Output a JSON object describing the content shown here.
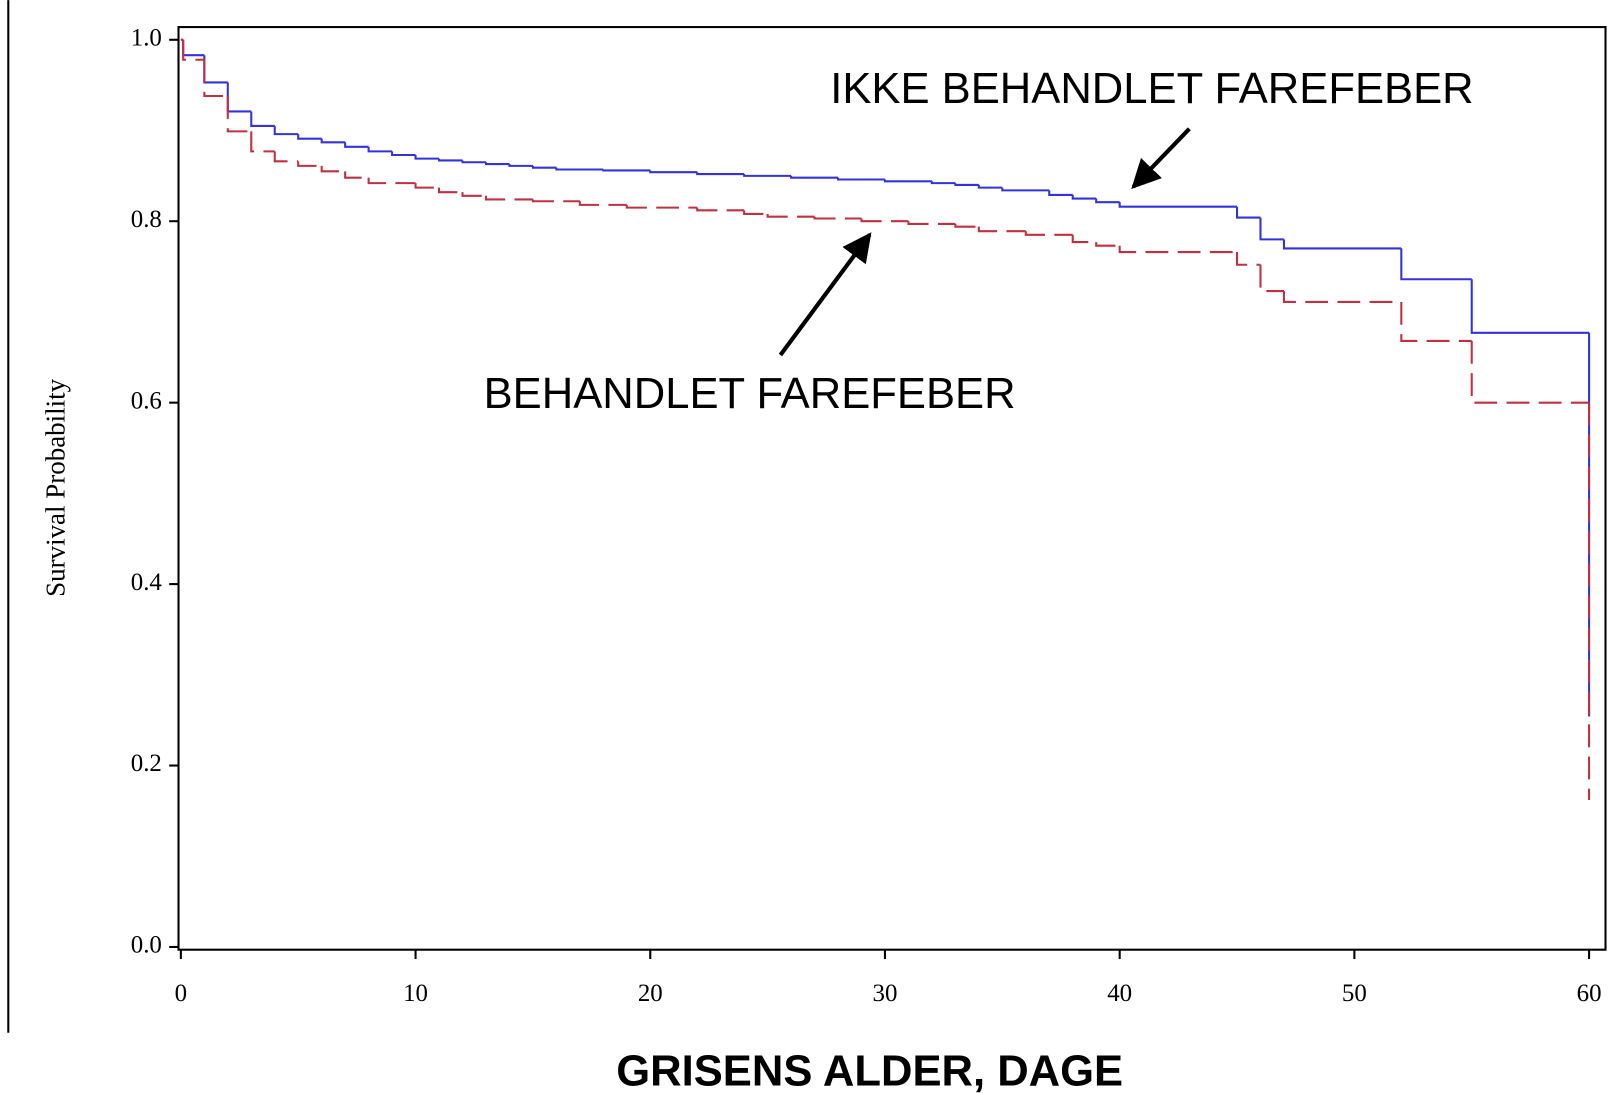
{
  "chart_data": {
    "type": "step",
    "y_label": "Survival Probability",
    "x_label": "GRISENS ALDER, DAGE",
    "xlim": [
      -0.1,
      60.7
    ],
    "ylim": [
      -0.003,
      1.014
    ],
    "xticks": [
      0,
      10,
      20,
      30,
      40,
      50,
      60
    ],
    "yticks": [
      {
        "value": 0,
        "label": "0.0"
      },
      0.2,
      0.4,
      0.6,
      0.8,
      {
        "value": 1,
        "label": "1.0"
      }
    ],
    "series": [
      {
        "name": "IKKE BEHANDLET FAREFEBER",
        "color": "#3333dd",
        "dash": false,
        "x": [
          0,
          0.1,
          1,
          2,
          3,
          4,
          5,
          6,
          7,
          8,
          9,
          10,
          11,
          12,
          13,
          14,
          15,
          16,
          18,
          20,
          22,
          24,
          26,
          28,
          30,
          32,
          33,
          34,
          35,
          37,
          38,
          39,
          40,
          45,
          46,
          47,
          52,
          55,
          60
        ],
        "values": [
          1.0,
          0.983,
          0.953,
          0.921,
          0.905,
          0.896,
          0.891,
          0.887,
          0.882,
          0.877,
          0.873,
          0.869,
          0.867,
          0.865,
          0.863,
          0.861,
          0.859,
          0.857,
          0.856,
          0.854,
          0.852,
          0.85,
          0.848,
          0.846,
          0.844,
          0.842,
          0.84,
          0.837,
          0.834,
          0.829,
          0.825,
          0.821,
          0.816,
          0.804,
          0.78,
          0.77,
          0.736,
          0.677,
          0.254
        ]
      },
      {
        "name": "BEHANDLET FAREFEBER",
        "color": "#c03040",
        "dash": true,
        "x": [
          0,
          0.1,
          1,
          2,
          3,
          4,
          5,
          6,
          7,
          8,
          10,
          11,
          12,
          13,
          15,
          17,
          19,
          22,
          24,
          25,
          27,
          29,
          31,
          33,
          34,
          36,
          38,
          39,
          40,
          45,
          46,
          47,
          52,
          55,
          60
        ],
        "values": [
          1.0,
          0.978,
          0.938,
          0.899,
          0.877,
          0.866,
          0.861,
          0.855,
          0.848,
          0.842,
          0.837,
          0.832,
          0.828,
          0.824,
          0.822,
          0.818,
          0.815,
          0.812,
          0.808,
          0.805,
          0.803,
          0.8,
          0.797,
          0.794,
          0.789,
          0.785,
          0.777,
          0.773,
          0.766,
          0.752,
          0.723,
          0.711,
          0.668,
          0.6,
          0.162
        ]
      }
    ]
  }
}
